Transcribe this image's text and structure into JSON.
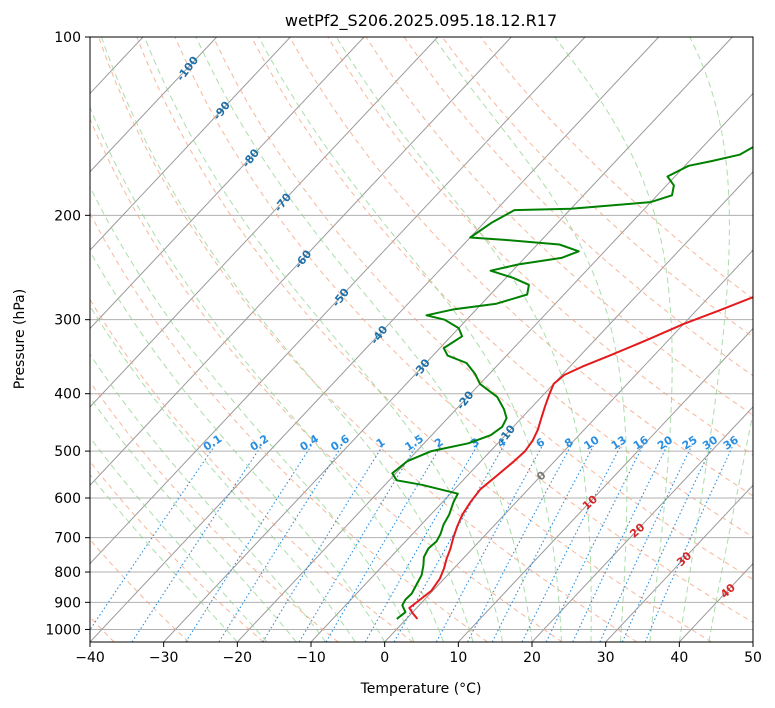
{
  "chart_data": {
    "type": "line",
    "title": "wetPf2_S206.2025.095.18.12.R17",
    "xlabel": "Temperature (°C)",
    "ylabel": "Pressure (hPa)",
    "xlim": [
      -40,
      50
    ],
    "ylim": [
      1050,
      100
    ],
    "y_scale": "log",
    "grid": true,
    "x_ticks": [
      "−40",
      "−30",
      "−20",
      "−10",
      "0",
      "10",
      "20",
      "30",
      "40",
      "50"
    ],
    "y_ticks": [
      "100",
      "200",
      "300",
      "400",
      "500",
      "600",
      "700",
      "800",
      "900",
      "1000"
    ],
    "colors": {
      "temperature": "#e41a1c",
      "dewpoint": "#008000",
      "dry_adiabat": "#f4a582",
      "moist_adiabat": "#8fd18f",
      "mixing_ratio": "#2a8fe0",
      "isotherm": "#888888"
    },
    "series": [
      {
        "key": "temperature",
        "points": [
          [
            1.5,
            960
          ],
          [
            0.2,
            940
          ],
          [
            -1.0,
            920
          ],
          [
            -0.6,
            890
          ],
          [
            -0.2,
            860
          ],
          [
            -0.6,
            820
          ],
          [
            -1.3,
            790
          ],
          [
            -2.2,
            760
          ],
          [
            -3.0,
            730
          ],
          [
            -4.0,
            700
          ],
          [
            -4.9,
            670
          ],
          [
            -5.7,
            640
          ],
          [
            -6.2,
            610
          ],
          [
            -6.5,
            580
          ],
          [
            -6.0,
            550
          ],
          [
            -5.5,
            520
          ],
          [
            -5.3,
            500
          ],
          [
            -5.6,
            480
          ],
          [
            -6.3,
            460
          ],
          [
            -7.3,
            440
          ],
          [
            -8.3,
            420
          ],
          [
            -9.3,
            400
          ],
          [
            -10.0,
            385
          ],
          [
            -9.7,
            372
          ],
          [
            -8.3,
            360
          ],
          [
            -6.0,
            345
          ],
          [
            -3.0,
            325
          ],
          [
            0.0,
            305
          ],
          [
            3.0,
            290
          ],
          [
            7.0,
            270
          ],
          [
            11.0,
            250
          ],
          [
            14.5,
            230
          ],
          [
            17.5,
            210
          ],
          [
            19.5,
            200
          ],
          [
            22.0,
            180
          ],
          [
            24.5,
            160
          ],
          [
            27.0,
            140
          ],
          [
            28.5,
            125
          ],
          [
            29.0,
            115
          ],
          [
            30.5,
            107
          ],
          [
            32.0,
            100
          ]
        ]
      },
      {
        "key": "dewpoint",
        "points": [
          [
            -1.3,
            960
          ],
          [
            -1.0,
            935
          ],
          [
            -2.3,
            910
          ],
          [
            -2.6,
            890
          ],
          [
            -2.5,
            870
          ],
          [
            -3.0,
            840
          ],
          [
            -3.5,
            810
          ],
          [
            -4.5,
            780
          ],
          [
            -5.5,
            755
          ],
          [
            -6.0,
            730
          ],
          [
            -5.8,
            710
          ],
          [
            -6.2,
            690
          ],
          [
            -7.0,
            665
          ],
          [
            -7.5,
            640
          ],
          [
            -8.5,
            610
          ],
          [
            -9.0,
            590
          ],
          [
            -15.0,
            570
          ],
          [
            -19.0,
            560
          ],
          [
            -20.5,
            545
          ],
          [
            -20.0,
            520
          ],
          [
            -18.0,
            500
          ],
          [
            -14.0,
            485
          ],
          [
            -12.0,
            470
          ],
          [
            -11.5,
            455
          ],
          [
            -12.0,
            440
          ],
          [
            -13.5,
            425
          ],
          [
            -16.0,
            405
          ],
          [
            -20.0,
            385
          ],
          [
            -22.0,
            370
          ],
          [
            -24.5,
            355
          ],
          [
            -28.0,
            345
          ],
          [
            -29.5,
            335
          ],
          [
            -28.5,
            320
          ],
          [
            -30.0,
            310
          ],
          [
            -33.0,
            300
          ],
          [
            -36.0,
            295
          ],
          [
            -33.0,
            288
          ],
          [
            -28.0,
            282
          ],
          [
            -25.0,
            272
          ],
          [
            -26.0,
            262
          ],
          [
            -29.0,
            255
          ],
          [
            -33.0,
            248
          ],
          [
            -30.0,
            242
          ],
          [
            -25.0,
            236
          ],
          [
            -23.5,
            230
          ],
          [
            -27.0,
            224
          ],
          [
            -35.0,
            220
          ],
          [
            -40.0,
            218
          ],
          [
            -39.0,
            206
          ],
          [
            -37.5,
            196
          ],
          [
            -30.0,
            195
          ],
          [
            -20.0,
            190
          ],
          [
            -18.0,
            185
          ],
          [
            -19.0,
            178
          ],
          [
            -21.0,
            172
          ],
          [
            -19.5,
            165
          ],
          [
            -17.0,
            162
          ],
          [
            -14.0,
            158
          ],
          [
            -12.5,
            150
          ],
          [
            -12.0,
            140
          ],
          [
            -10.0,
            130
          ],
          [
            -7.0,
            120
          ],
          [
            -4.0,
            112
          ],
          [
            -1.5,
            105
          ],
          [
            0.0,
            100
          ]
        ]
      }
    ],
    "dry_adiabat_labels": [
      "-100",
      "-90",
      "-80",
      "-70",
      "-60",
      "-50",
      "-40",
      "-30",
      "-20",
      "-10"
    ],
    "moist_adiabat_labels": [
      "0",
      "10",
      "20",
      "30",
      "40"
    ],
    "mixing_ratio_labels": [
      "0.1",
      "0.2",
      "0.4",
      "0.6",
      "1",
      "1.5",
      "2",
      "3",
      "4",
      "6",
      "8",
      "10",
      "13",
      "16",
      "20",
      "25",
      "30",
      "36"
    ]
  }
}
